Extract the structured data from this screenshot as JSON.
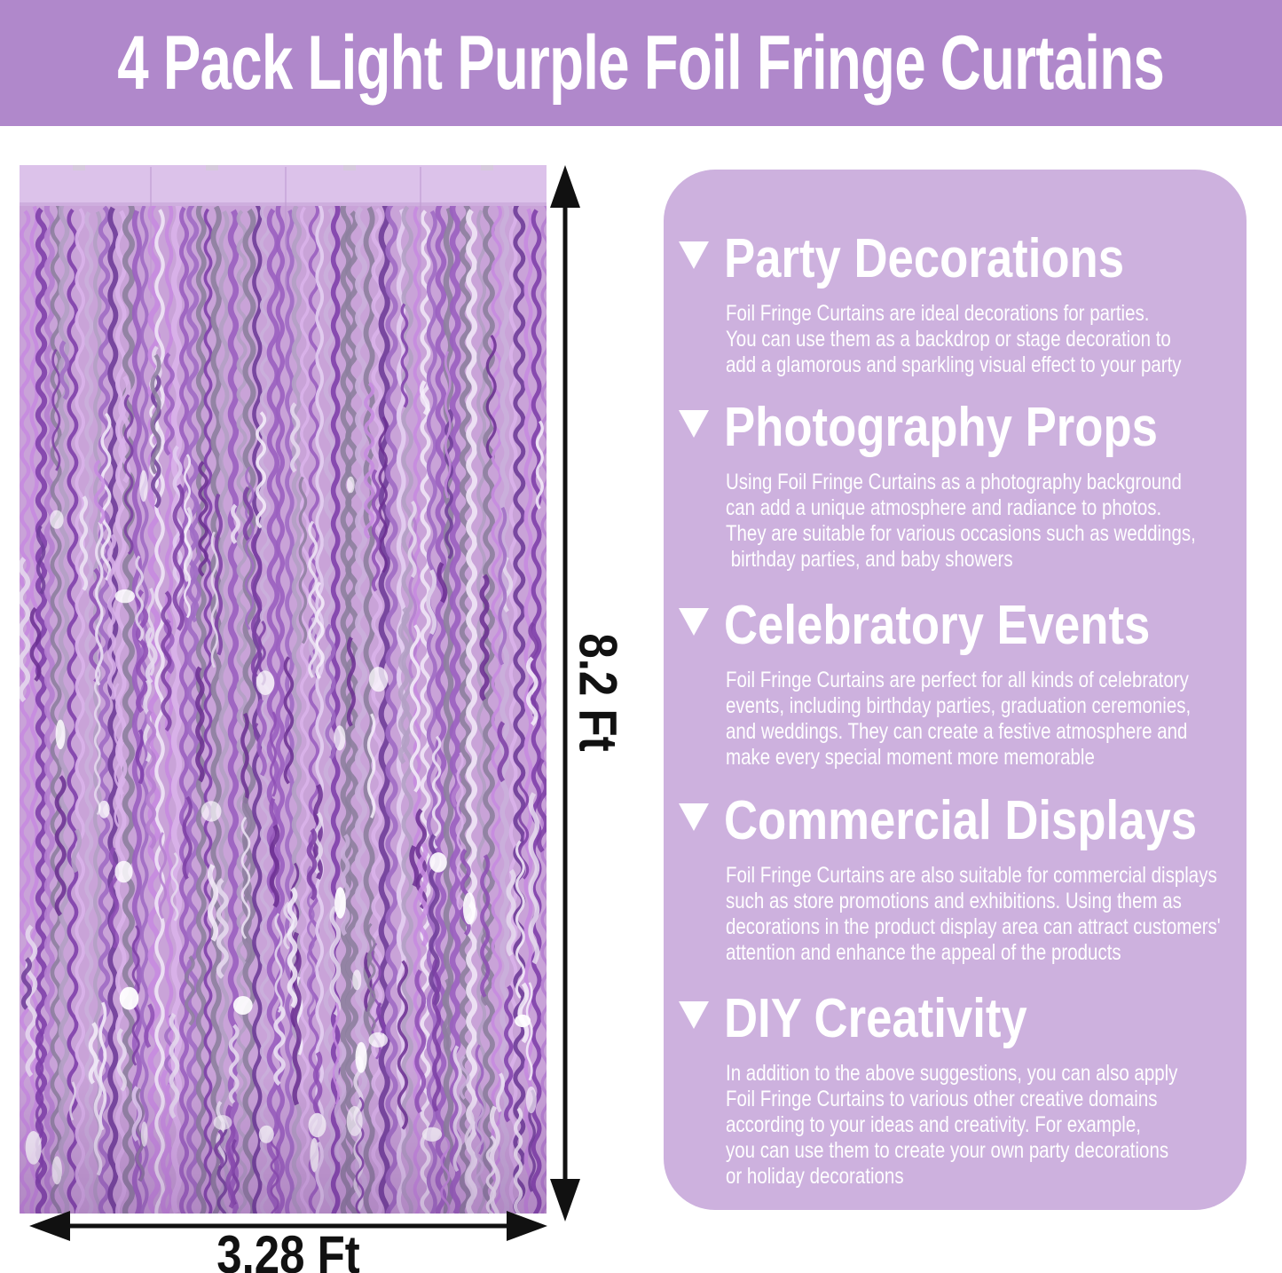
{
  "header": {
    "title": "4 Pack Light Purple Foil Fringe Curtains",
    "background_color": "#b088cb",
    "text_color": "#ffffff"
  },
  "product": {
    "name": "Light purple foil fringe curtain",
    "height_label": "8.2 Ft",
    "width_label": "3.28 Ft",
    "arrow_color": "#111111",
    "curtain": {
      "band_color": "#dcc2ea",
      "base_color": "#c9a3d8",
      "seam_color": "#c09ad2",
      "strand_palette": [
        "#b57fd0",
        "#9a5fc0",
        "#8040ab",
        "#d9b3ea",
        "#efe6f6",
        "#b3a0c4",
        "#8d7f9f",
        "#c78be0",
        "#a06cc4",
        "#e3cff1",
        "#6f3d99",
        "#cab0dc"
      ],
      "highlight_colors": [
        "#f6f0fa",
        "#e6dcef"
      ],
      "dark_colors": [
        "#7c3fa5",
        "#8e4fb5",
        "#6b2f92"
      ],
      "sparkle_color": "#ffffff"
    }
  },
  "info_panel": {
    "background_color": "#cdb1de",
    "bullet_icon": "down-triangle",
    "text_color": "#ffffff",
    "sections": [
      {
        "title": "Party Decorations",
        "body": "Foil Fringe Curtains are ideal decorations for parties.\nYou can use them as a backdrop or stage decoration to\nadd a glamorous and sparkling visual effect to your party"
      },
      {
        "title": "Photography Props",
        "body": "Using Foil Fringe Curtains as a photography background\ncan add a unique atmosphere and radiance to photos.\nThey are suitable for various occasions such as weddings,\n birthday parties, and baby showers"
      },
      {
        "title": "Celebratory Events",
        "body": "Foil Fringe Curtains are perfect for all kinds of celebratory\nevents, including birthday parties, graduation ceremonies,\nand weddings. They can create a festive atmosphere and\nmake every special moment more memorable"
      },
      {
        "title": "Commercial Displays",
        "body": "Foil Fringe Curtains are also suitable for commercial displays\nsuch as store promotions and exhibitions. Using them as\ndecorations in the product display area can attract customers'\nattention and enhance the appeal of the products"
      },
      {
        "title": "DIY Creativity",
        "body": "In addition to the above suggestions, you can also apply\nFoil Fringe Curtains to various other creative domains\naccording to your ideas and creativity. For example,\nyou can use them to create your own party decorations\nor holiday decorations"
      }
    ]
  }
}
